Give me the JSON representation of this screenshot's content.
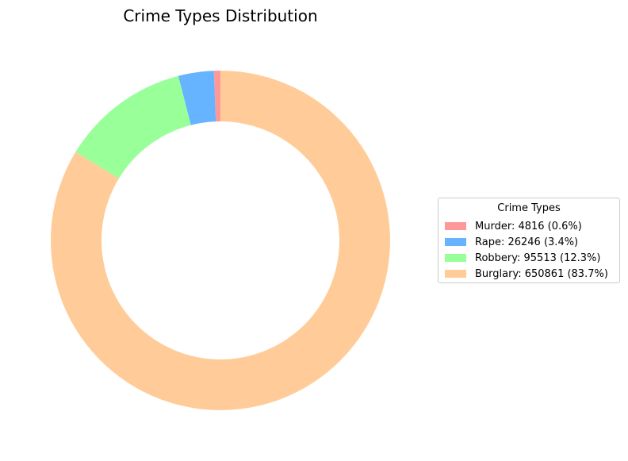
{
  "chart_data": {
    "type": "pie",
    "style": "donut",
    "title": "Crime Types Distribution",
    "legend": {
      "title": "Crime Types",
      "placement": "right"
    },
    "slices": [
      {
        "key": "murder",
        "name": "Murder",
        "value": 4816,
        "percent": 0.6,
        "label": "Murder: 4816 (0.6%)",
        "color": "#ff9999"
      },
      {
        "key": "rape",
        "name": "Rape",
        "value": 26246,
        "percent": 3.4,
        "label": "Rape: 26246 (3.4%)",
        "color": "#66b3ff"
      },
      {
        "key": "robbery",
        "name": "Robbery",
        "value": 95513,
        "percent": 12.3,
        "label": "Robbery: 95513 (12.3%)",
        "color": "#99ff99"
      },
      {
        "key": "burglary",
        "name": "Burglary",
        "value": 650861,
        "percent": 83.7,
        "label": "Burglary: 650861 (83.7%)",
        "color": "#ffcc99"
      }
    ],
    "start_angle_deg": 90,
    "direction": "counterclockwise"
  }
}
